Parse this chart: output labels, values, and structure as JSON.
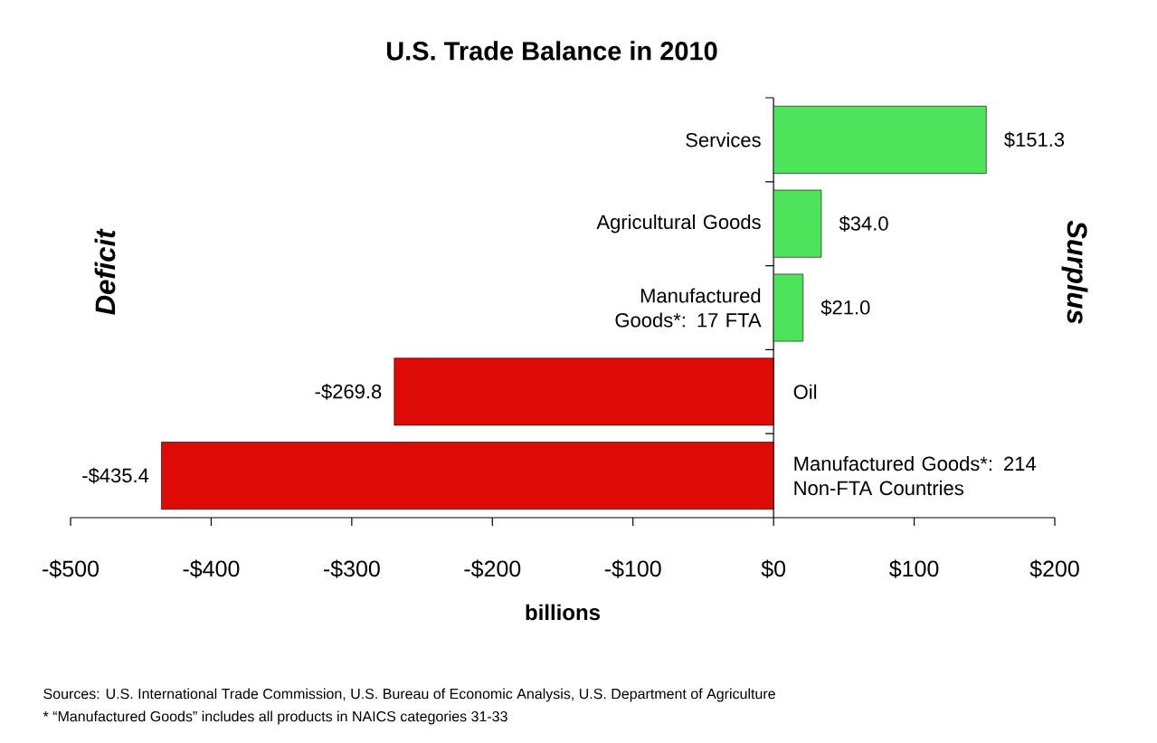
{
  "chart_data": {
    "type": "bar",
    "orientation": "horizontal",
    "title": "U.S. Trade Balance in 2010",
    "xlabel": "billions",
    "categories": [
      "Services",
      "Agricultural Goods",
      "Manufactured Goods*: 17 FTA",
      "Oil",
      "Manufactured Goods*: 214 Non-FTA Countries"
    ],
    "values": [
      151.3,
      34.0,
      21.0,
      -269.8,
      -435.4
    ],
    "colors": [
      "#4de35a",
      "#4de35a",
      "#4de35a",
      "#dd0a05",
      "#dd0a05"
    ],
    "value_labels": [
      "$151.3",
      "$34.0",
      "$21.0",
      "-$269.8",
      "-$435.4"
    ],
    "xlim": [
      -500,
      200
    ],
    "xticks": [
      {
        "value": -500,
        "label": "-$500"
      },
      {
        "value": -400,
        "label": "-$400"
      },
      {
        "value": -300,
        "label": "-$300"
      },
      {
        "value": -200,
        "label": "-$200"
      },
      {
        "value": -100,
        "label": "-$100"
      },
      {
        "value": 0,
        "label": "$0"
      },
      {
        "value": 100,
        "label": "$100"
      },
      {
        "value": 200,
        "label": "$200"
      }
    ],
    "grid": false,
    "annotations": [
      "Deficit",
      "Surplus",
      "Sources: U.S. International Trade Commission, U.S. Bureau of Economic Analysis, U.S. Department of Agriculture",
      "* “Manufactured Goods” includes all products in NAICS categories 31-33"
    ]
  }
}
